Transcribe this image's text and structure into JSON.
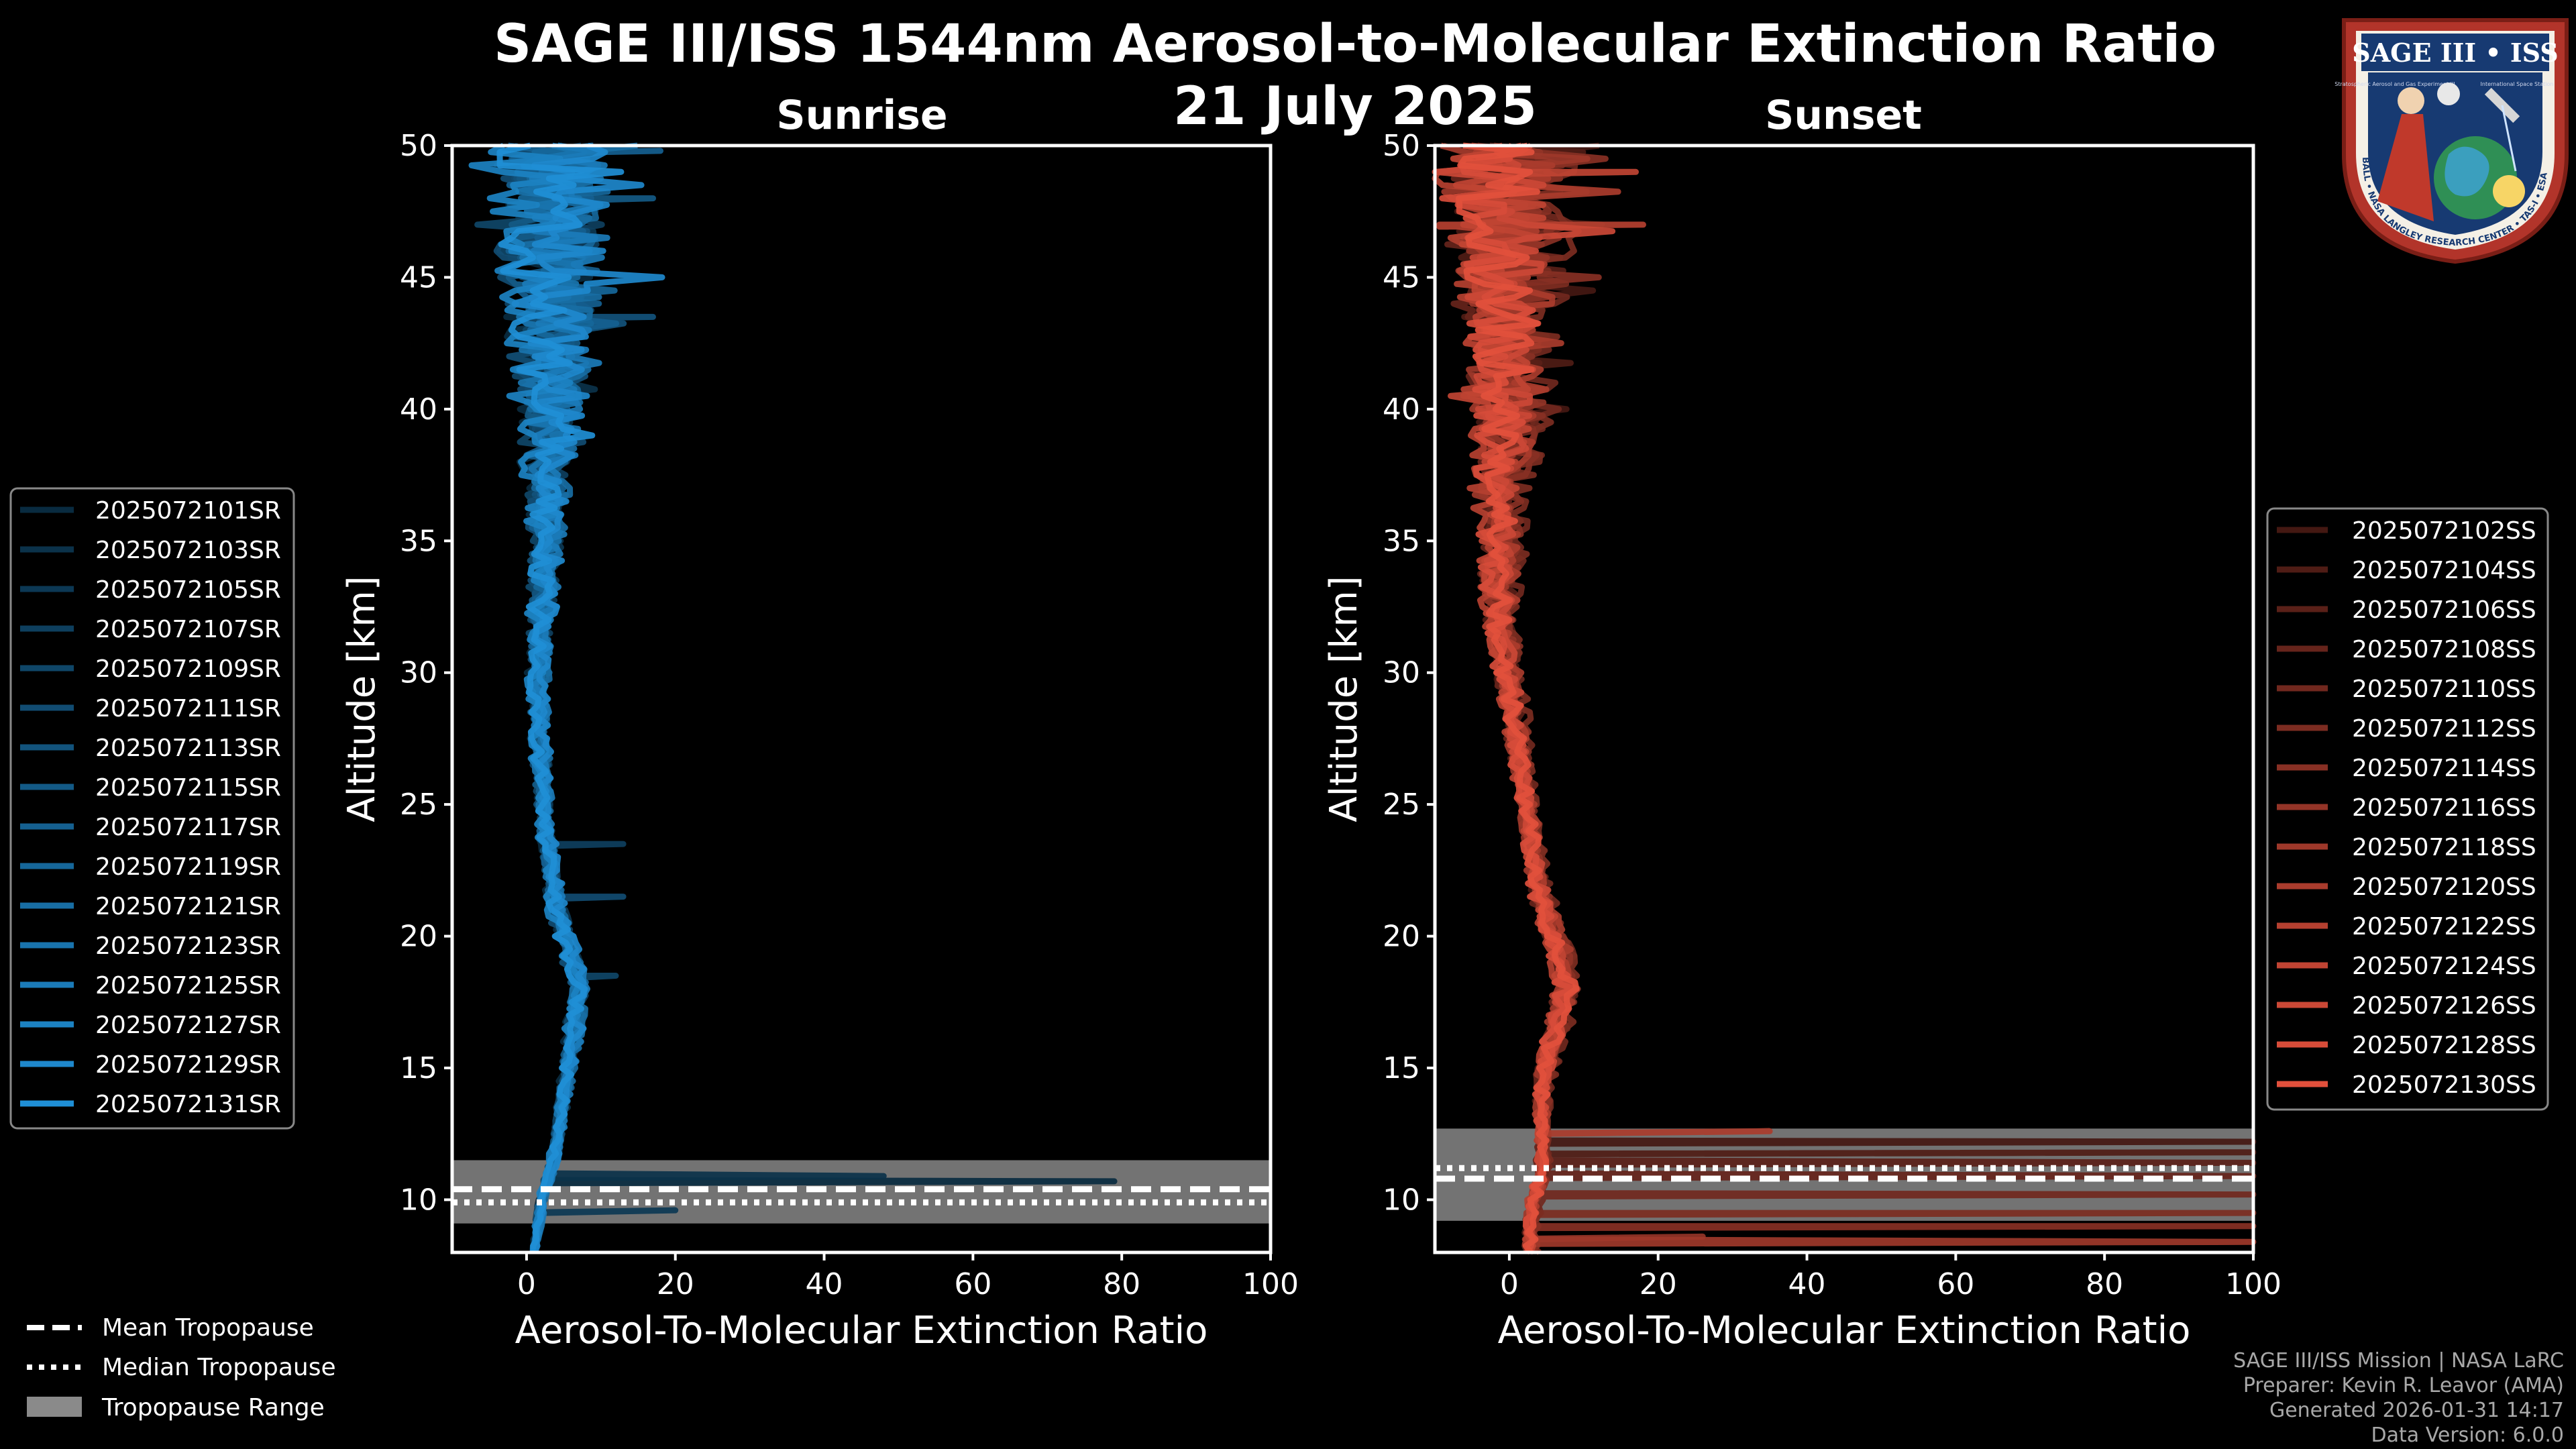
{
  "figure": {
    "title_line1": "SAGE III/ISS 1544nm Aerosol-to-Molecular Extinction Ratio",
    "title_line2": "21 July 2025"
  },
  "logo": {
    "top_text": "SAGE III • ISS",
    "small_left": "Stratospheric Aerosol and Gas Experiment III",
    "small_right": "International Space Station",
    "ring_text": "BALL • NASA LANGLEY RESEARCH CENTER • TAS-I • ESA"
  },
  "credits": {
    "line1": "SAGE III/ISS Mission | NASA LaRC",
    "line2": "Preparer: Kevin R. Leavor (AMA)",
    "line3": "Generated 2026-01-31 14:17",
    "line4": "Data Version: 6.0.0"
  },
  "tropopause_legend": {
    "mean": "Mean Tropopause",
    "median": "Median Tropopause",
    "range": "Tropopause Range"
  },
  "chart_data": [
    {
      "type": "line",
      "title": "Sunrise",
      "xlabel": "Aerosol-To-Molecular Extinction Ratio",
      "ylabel": "Altitude [km]",
      "xlim": [
        -10,
        100
      ],
      "ylim": [
        8,
        50
      ],
      "xticks": [
        0,
        20,
        40,
        60,
        80,
        100
      ],
      "yticks": [
        10,
        15,
        20,
        25,
        30,
        35,
        40,
        45,
        50
      ],
      "color": "#1f8fd6",
      "legend_position": "left",
      "tropopause": {
        "mean": 10.4,
        "median": 9.9,
        "range": [
          9.1,
          11.5
        ]
      },
      "series_names": [
        "2025072101SR",
        "2025072103SR",
        "2025072105SR",
        "2025072107SR",
        "2025072109SR",
        "2025072111SR",
        "2025072113SR",
        "2025072115SR",
        "2025072117SR",
        "2025072119SR",
        "2025072121SR",
        "2025072123SR",
        "2025072125SR",
        "2025072127SR",
        "2025072129SR",
        "2025072131SR"
      ],
      "profile": {
        "alt": [
          8,
          9,
          10,
          10.5,
          11,
          11.5,
          12,
          13,
          14,
          15,
          16,
          17,
          18,
          19,
          20,
          21,
          22,
          23,
          24,
          25,
          26,
          27,
          28,
          29,
          30,
          31,
          32,
          33,
          34,
          35,
          36,
          37,
          38,
          39,
          40,
          41,
          42,
          43,
          44,
          45,
          46,
          47,
          48,
          49,
          50
        ],
        "ratio": [
          1,
          1.5,
          2,
          2.5,
          3,
          3.5,
          4,
          4.5,
          5,
          5.5,
          6,
          6.5,
          7,
          6,
          5,
          4,
          3.5,
          3,
          2.5,
          2.2,
          2,
          1.8,
          1.6,
          1.5,
          1.5,
          1.6,
          1.8,
          2,
          2.2,
          2.4,
          2.6,
          2.6,
          2.5,
          2.5,
          2.5,
          2.5,
          2.5,
          2.5,
          2.5,
          2.5,
          2.5,
          2.5,
          2.5,
          2.5,
          2.5
        ],
        "spread": [
          0.4,
          0.5,
          0.6,
          0.6,
          0.7,
          0.8,
          0.8,
          0.9,
          1,
          1.2,
          1.3,
          1.4,
          1.5,
          1.5,
          1.5,
          1.4,
          1.3,
          1.2,
          1.2,
          1.2,
          1.3,
          1.4,
          1.5,
          1.6,
          1.7,
          1.8,
          2,
          2.2,
          2.4,
          2.6,
          3,
          3.4,
          3.8,
          4.2,
          4.8,
          5.5,
          6,
          6.5,
          7,
          7.5,
          8,
          8,
          8,
          8,
          8
        ]
      },
      "spikes": [
        {
          "alt": 10.7,
          "ratio": 79
        },
        {
          "alt": 10.9,
          "ratio": 48
        },
        {
          "alt": 9.6,
          "ratio": 20
        },
        {
          "alt": 23.5,
          "ratio": 13
        },
        {
          "alt": 18.5,
          "ratio": 12
        },
        {
          "alt": 21.5,
          "ratio": 13
        },
        {
          "alt": 43.5,
          "ratio": 17
        },
        {
          "alt": 48,
          "ratio": 17
        },
        {
          "alt": 49.8,
          "ratio": 18
        }
      ]
    },
    {
      "type": "line",
      "title": "Sunset",
      "xlabel": "Aerosol-To-Molecular Extinction Ratio",
      "ylabel": "Altitude [km]",
      "xlim": [
        -10,
        100
      ],
      "ylim": [
        8,
        50
      ],
      "xticks": [
        0,
        20,
        40,
        60,
        80,
        100
      ],
      "yticks": [
        10,
        15,
        20,
        25,
        30,
        35,
        40,
        45,
        50
      ],
      "color": "#e2503c",
      "legend_position": "right",
      "tropopause": {
        "mean": 10.8,
        "median": 11.2,
        "range": [
          9.2,
          12.7
        ]
      },
      "series_names": [
        "2025072102SS",
        "2025072104SS",
        "2025072106SS",
        "2025072108SS",
        "2025072110SS",
        "2025072112SS",
        "2025072114SS",
        "2025072116SS",
        "2025072118SS",
        "2025072120SS",
        "2025072122SS",
        "2025072124SS",
        "2025072126SS",
        "2025072128SS",
        "2025072130SS"
      ],
      "profile": {
        "alt": [
          8,
          9,
          10,
          10.5,
          11,
          11.5,
          12,
          13,
          14,
          15,
          16,
          17,
          18,
          19,
          20,
          21,
          22,
          23,
          24,
          25,
          26,
          27,
          28,
          29,
          30,
          31,
          32,
          33,
          34,
          35,
          36,
          37,
          38,
          39,
          40,
          41,
          42,
          43,
          44,
          45,
          46,
          47,
          48,
          49,
          50
        ],
        "ratio": [
          3,
          3,
          3.5,
          4,
          4.5,
          4.5,
          4.5,
          4.5,
          4.5,
          5,
          6,
          7,
          8,
          7.5,
          6,
          5,
          4,
          3.5,
          3,
          2.5,
          2,
          1.5,
          1,
          0.5,
          0,
          -0.5,
          -1,
          -1,
          -1,
          -1,
          -1,
          -1,
          -0.5,
          0,
          0,
          0,
          0,
          0,
          0,
          0,
          0,
          0,
          0,
          0,
          0
        ],
        "spread": [
          1,
          1,
          1,
          1,
          1,
          1,
          1,
          1,
          1.2,
          1.4,
          1.6,
          1.8,
          2,
          2,
          2,
          1.8,
          1.6,
          1.5,
          1.4,
          1.4,
          1.5,
          1.6,
          1.8,
          2,
          2.2,
          2.4,
          2.6,
          2.8,
          3,
          3.2,
          3.5,
          4,
          4.5,
          5,
          5.5,
          6,
          6.5,
          7,
          7.5,
          8,
          8.5,
          9,
          9,
          9,
          9
        ]
      },
      "spikes": [
        {
          "alt": 12.2,
          "ratio": 100
        },
        {
          "alt": 11.8,
          "ratio": 100
        },
        {
          "alt": 11.4,
          "ratio": 100
        },
        {
          "alt": 10.9,
          "ratio": 100
        },
        {
          "alt": 10.2,
          "ratio": 100
        },
        {
          "alt": 9.5,
          "ratio": 100
        },
        {
          "alt": 9.0,
          "ratio": 100
        },
        {
          "alt": 8.6,
          "ratio": 26
        },
        {
          "alt": 8.4,
          "ratio": 100
        },
        {
          "alt": 12.6,
          "ratio": 35
        },
        {
          "alt": 47,
          "ratio": 18
        },
        {
          "alt": 49,
          "ratio": 17
        }
      ]
    }
  ]
}
